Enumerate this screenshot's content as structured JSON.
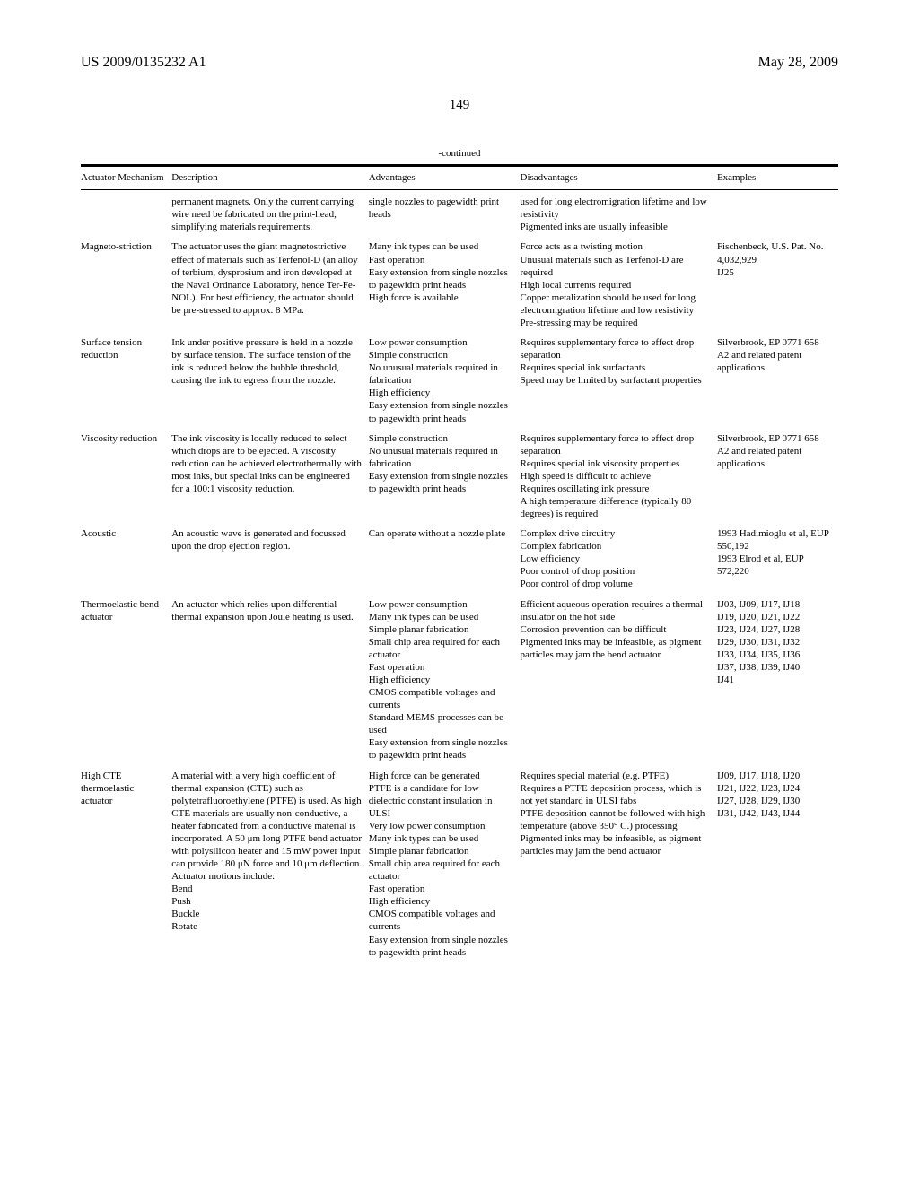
{
  "header": {
    "pub_number": "US 2009/0135232 A1",
    "pub_date": "May 28, 2009",
    "page_number": "149",
    "continued_label": "-continued"
  },
  "table": {
    "columns": [
      "Actuator Mechanism",
      "Description",
      "Advantages",
      "Disadvantages",
      "Examples"
    ],
    "rows": [
      {
        "mechanism": "",
        "description": "permanent magnets. Only the current carrying wire need be fabricated on the print-head, simplifying materials requirements.",
        "advantages": "single nozzles to pagewidth print heads",
        "disadvantages": "used for long electromigration lifetime and low resistivity\nPigmented inks are usually infeasible",
        "examples": ""
      },
      {
        "mechanism": "Magneto-striction",
        "description": "The actuator uses the giant magnetostrictive effect of materials such as Terfenol-D (an alloy of terbium, dysprosium and iron developed at the Naval Ordnance Laboratory, hence Ter-Fe-NOL). For best efficiency, the actuator should be pre-stressed to approx. 8 MPa.",
        "advantages": "Many ink types can be used\nFast operation\nEasy extension from single nozzles to pagewidth print heads\nHigh force is available",
        "disadvantages": "Force acts as a twisting motion\nUnusual materials such as Terfenol-D are required\nHigh local currents required\nCopper metalization should be used for long electromigration lifetime and low resistivity\nPre-stressing may be required",
        "examples": "Fischenbeck, U.S. Pat. No. 4,032,929\nIJ25"
      },
      {
        "mechanism": "Surface tension reduction",
        "description": "Ink under positive pressure is held in a nozzle by surface tension. The surface tension of the ink is reduced below the bubble threshold, causing the ink to egress from the nozzle.",
        "advantages": "Low power consumption\nSimple construction\nNo unusual materials required in fabrication\nHigh efficiency\nEasy extension from single nozzles to pagewidth print heads",
        "disadvantages": "Requires supplementary force to effect drop separation\nRequires special ink surfactants\nSpeed may be limited by surfactant properties",
        "examples": "Silverbrook, EP 0771 658 A2 and related patent applications"
      },
      {
        "mechanism": "Viscosity reduction",
        "description": "The ink viscosity is locally reduced to select which drops are to be ejected. A viscosity reduction can be achieved electrothermally with most inks, but special inks can be engineered for a 100:1 viscosity reduction.",
        "advantages": "Simple construction\nNo unusual materials required in fabrication\nEasy extension from single nozzles to pagewidth print heads",
        "disadvantages": "Requires supplementary force to effect drop separation\nRequires special ink viscosity properties\nHigh speed is difficult to achieve\nRequires oscillating ink pressure\nA high temperature difference (typically 80 degrees) is required",
        "examples": "Silverbrook, EP 0771 658 A2 and related patent applications"
      },
      {
        "mechanism": "Acoustic",
        "description": "An acoustic wave is generated and focussed upon the drop ejection region.",
        "advantages": "Can operate without a nozzle plate",
        "disadvantages": "Complex drive circuitry\nComplex fabrication\nLow efficiency\nPoor control of drop position\nPoor control of drop volume",
        "examples": "1993 Hadimioglu et al, EUP 550,192\n1993 Elrod et al, EUP 572,220"
      },
      {
        "mechanism": "Thermoelastic bend actuator",
        "description": "An actuator which relies upon differential thermal expansion upon Joule heating is used.",
        "advantages": "Low power consumption\nMany ink types can be used\nSimple planar fabrication\nSmall chip area required for each actuator\nFast operation\nHigh efficiency\nCMOS compatible voltages and currents\nStandard MEMS processes can be used\nEasy extension from single nozzles to pagewidth print heads",
        "disadvantages": "Efficient aqueous operation requires a thermal insulator on the hot side\nCorrosion prevention can be difficult\nPigmented inks may be infeasible, as pigment particles may jam the bend actuator",
        "examples": "IJ03, IJ09, IJ17, IJ18\nIJ19, IJ20, IJ21, IJ22\nIJ23, IJ24, IJ27, IJ28\nIJ29, IJ30, IJ31, IJ32\nIJ33, IJ34, IJ35, IJ36\nIJ37, IJ38, IJ39, IJ40\nIJ41"
      },
      {
        "mechanism": "High CTE thermoelastic actuator",
        "description": "A material with a very high coefficient of thermal expansion (CTE) such as polytetrafluoroethylene (PTFE) is used. As high CTE materials are usually non-conductive, a heater fabricated from a conductive material is incorporated. A 50 μm long PTFE bend actuator with polysilicon heater and 15 mW power input can provide 180 μN force and 10 μm deflection. Actuator motions include:\nBend\nPush\nBuckle\nRotate",
        "advantages": "High force can be generated\nPTFE is a candidate for low dielectric constant insulation in ULSI\nVery low power consumption\nMany ink types can be used\nSimple planar fabrication\nSmall chip area required for each actuator\nFast operation\nHigh efficiency\nCMOS compatible voltages and currents\nEasy extension from single nozzles to pagewidth print heads",
        "disadvantages": "Requires special material (e.g. PTFE)\nRequires a PTFE deposition process, which is not yet standard in ULSI fabs\nPTFE deposition cannot be followed with high temperature (above 350° C.) processing\nPigmented inks may be infeasible, as pigment particles may jam the bend actuator",
        "examples": "IJ09, IJ17, IJ18, IJ20\nIJ21, IJ22, IJ23, IJ24\nIJ27, IJ28, IJ29, IJ30\nIJ31, IJ42, IJ43, IJ44"
      }
    ]
  }
}
